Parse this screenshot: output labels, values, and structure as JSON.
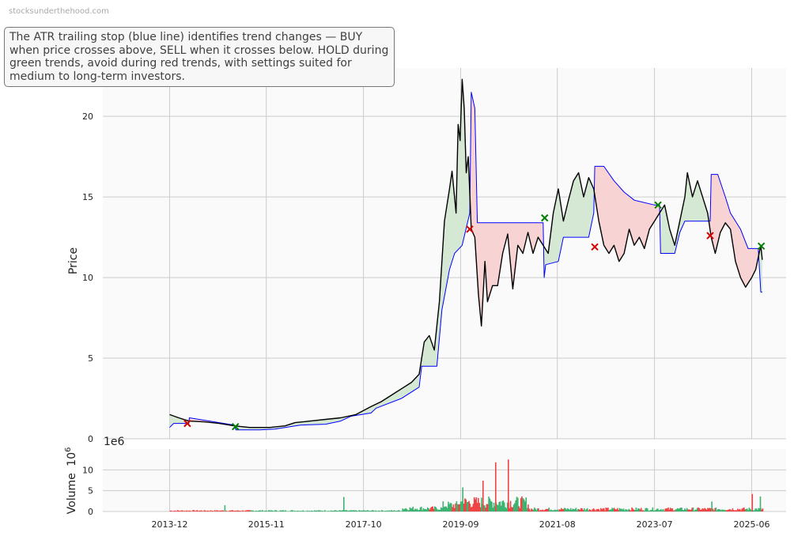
{
  "watermark": "stocksunderthehood.com",
  "note": "The ATR trailing stop (blue line) identifies trend changes — BUY when price crosses above, SELL when it crosses below. HOLD during green trends, avoid during red trends, with settings suited for medium to long-term investors.",
  "colors": {
    "price": "#000000",
    "stop": "#0000ff",
    "bull_fill": "#d5e8d4",
    "bear_fill": "#f8d3d3",
    "buy_marker": "#008000",
    "sell_marker": "#d00000",
    "vol_up": "#3cb371",
    "vol_down": "#ef4444",
    "grid": "#cccccc",
    "panel_bg": "#fafafa"
  },
  "chart_data": {
    "type": "line",
    "price_panel": {
      "ylabel": "Price",
      "ylim": [
        0,
        23
      ],
      "yticks": [
        0,
        5,
        10,
        15,
        20
      ],
      "grid": true
    },
    "volume_panel": {
      "ylabel": "Volume",
      "ylabel_exp": "6",
      "offset_label": "1e6",
      "ylim": [
        0,
        15
      ],
      "yticks": [
        0,
        5,
        10
      ]
    },
    "xlim": [
      2012.6,
      2026.1
    ],
    "xticks": [
      {
        "label": "2013-12",
        "x": 2013.92
      },
      {
        "label": "2015-11",
        "x": 2015.83
      },
      {
        "label": "2017-10",
        "x": 2017.75
      },
      {
        "label": "2019-09",
        "x": 2019.67
      },
      {
        "label": "2021-08",
        "x": 2021.58
      },
      {
        "label": "2023-07",
        "x": 2023.5
      },
      {
        "label": "2025-06",
        "x": 2025.42
      }
    ],
    "price": [
      [
        2013.92,
        1.5
      ],
      [
        2014.1,
        1.3
      ],
      [
        2014.3,
        1.1
      ],
      [
        2014.6,
        1.05
      ],
      [
        2014.9,
        0.95
      ],
      [
        2015.2,
        0.8
      ],
      [
        2015.5,
        0.7
      ],
      [
        2015.9,
        0.7
      ],
      [
        2016.2,
        0.8
      ],
      [
        2016.4,
        1.0
      ],
      [
        2016.7,
        1.1
      ],
      [
        2017.0,
        1.2
      ],
      [
        2017.3,
        1.3
      ],
      [
        2017.6,
        1.5
      ],
      [
        2017.9,
        2.0
      ],
      [
        2018.1,
        2.3
      ],
      [
        2018.4,
        2.9
      ],
      [
        2018.7,
        3.5
      ],
      [
        2018.85,
        4.0
      ],
      [
        2018.95,
        6.0
      ],
      [
        2019.05,
        6.4
      ],
      [
        2019.15,
        5.5
      ],
      [
        2019.25,
        8.5
      ],
      [
        2019.35,
        13.5
      ],
      [
        2019.45,
        15.5
      ],
      [
        2019.5,
        16.6
      ],
      [
        2019.58,
        14.0
      ],
      [
        2019.62,
        19.5
      ],
      [
        2019.66,
        18.5
      ],
      [
        2019.7,
        22.3
      ],
      [
        2019.74,
        20.5
      ],
      [
        2019.78,
        16.5
      ],
      [
        2019.82,
        17.5
      ],
      [
        2019.88,
        13.0
      ],
      [
        2019.95,
        12.5
      ],
      [
        2020.02,
        9.0
      ],
      [
        2020.08,
        7.0
      ],
      [
        2020.15,
        11.0
      ],
      [
        2020.2,
        8.5
      ],
      [
        2020.3,
        9.5
      ],
      [
        2020.4,
        9.5
      ],
      [
        2020.5,
        11.5
      ],
      [
        2020.6,
        12.7
      ],
      [
        2020.7,
        9.3
      ],
      [
        2020.8,
        12.0
      ],
      [
        2020.9,
        11.5
      ],
      [
        2021.0,
        12.8
      ],
      [
        2021.1,
        11.5
      ],
      [
        2021.2,
        12.5
      ],
      [
        2021.3,
        12.0
      ],
      [
        2021.4,
        11.5
      ],
      [
        2021.5,
        14.0
      ],
      [
        2021.6,
        15.5
      ],
      [
        2021.7,
        13.5
      ],
      [
        2021.8,
        14.8
      ],
      [
        2021.9,
        16.0
      ],
      [
        2022.0,
        16.5
      ],
      [
        2022.1,
        15.0
      ],
      [
        2022.2,
        16.2
      ],
      [
        2022.3,
        15.5
      ],
      [
        2022.4,
        13.5
      ],
      [
        2022.5,
        12.0
      ],
      [
        2022.6,
        11.5
      ],
      [
        2022.7,
        12.0
      ],
      [
        2022.8,
        11.0
      ],
      [
        2022.9,
        11.5
      ],
      [
        2023.0,
        13.0
      ],
      [
        2023.1,
        12.0
      ],
      [
        2023.2,
        12.5
      ],
      [
        2023.3,
        11.8
      ],
      [
        2023.4,
        13.0
      ],
      [
        2023.5,
        13.5
      ],
      [
        2023.6,
        14.0
      ],
      [
        2023.7,
        14.5
      ],
      [
        2023.8,
        13.0
      ],
      [
        2023.9,
        12.0
      ],
      [
        2024.0,
        13.5
      ],
      [
        2024.1,
        15.0
      ],
      [
        2024.15,
        16.5
      ],
      [
        2024.25,
        15.0
      ],
      [
        2024.35,
        16.0
      ],
      [
        2024.45,
        15.0
      ],
      [
        2024.55,
        14.0
      ],
      [
        2024.62,
        12.5
      ],
      [
        2024.7,
        11.5
      ],
      [
        2024.8,
        12.8
      ],
      [
        2024.9,
        13.4
      ],
      [
        2025.0,
        13.0
      ],
      [
        2025.1,
        11.0
      ],
      [
        2025.2,
        10.0
      ],
      [
        2025.3,
        9.4
      ],
      [
        2025.42,
        10.0
      ],
      [
        2025.5,
        10.5
      ],
      [
        2025.6,
        12.0
      ],
      [
        2025.63,
        11.1
      ]
    ],
    "stop": [
      [
        2013.92,
        0.7
      ],
      [
        2014.0,
        0.95
      ],
      [
        2014.3,
        0.95
      ],
      [
        2014.31,
        1.3
      ],
      [
        2014.6,
        1.15
      ],
      [
        2014.9,
        1.0
      ],
      [
        2015.2,
        0.85
      ],
      [
        2015.23,
        0.55
      ],
      [
        2015.7,
        0.55
      ],
      [
        2016.0,
        0.6
      ],
      [
        2016.2,
        0.7
      ],
      [
        2016.5,
        0.85
      ],
      [
        2017.0,
        0.9
      ],
      [
        2017.3,
        1.1
      ],
      [
        2017.5,
        1.4
      ],
      [
        2017.9,
        1.6
      ],
      [
        2018.0,
        1.9
      ],
      [
        2018.5,
        2.5
      ],
      [
        2018.85,
        3.2
      ],
      [
        2018.9,
        4.5
      ],
      [
        2019.2,
        4.5
      ],
      [
        2019.3,
        8.0
      ],
      [
        2019.45,
        10.5
      ],
      [
        2019.55,
        11.5
      ],
      [
        2019.7,
        12.0
      ],
      [
        2019.85,
        14.0
      ],
      [
        2019.88,
        21.5
      ],
      [
        2019.95,
        20.5
      ],
      [
        2020.0,
        13.4
      ],
      [
        2020.6,
        13.4
      ],
      [
        2021.3,
        13.4
      ],
      [
        2021.32,
        10.0
      ],
      [
        2021.35,
        10.8
      ],
      [
        2021.6,
        11.0
      ],
      [
        2021.7,
        12.5
      ],
      [
        2022.2,
        12.5
      ],
      [
        2022.3,
        14.0
      ],
      [
        2022.32,
        16.9
      ],
      [
        2022.5,
        16.9
      ],
      [
        2022.7,
        16.0
      ],
      [
        2022.9,
        15.3
      ],
      [
        2023.1,
        14.8
      ],
      [
        2023.5,
        14.5
      ],
      [
        2023.6,
        14.5
      ],
      [
        2023.62,
        11.5
      ],
      [
        2023.9,
        11.5
      ],
      [
        2024.0,
        12.8
      ],
      [
        2024.1,
        13.5
      ],
      [
        2024.6,
        13.5
      ],
      [
        2024.62,
        16.4
      ],
      [
        2024.75,
        16.4
      ],
      [
        2024.9,
        15.0
      ],
      [
        2025.0,
        14.0
      ],
      [
        2025.2,
        13.0
      ],
      [
        2025.35,
        11.8
      ],
      [
        2025.55,
        11.8
      ],
      [
        2025.6,
        9.1
      ],
      [
        2025.63,
        9.1
      ]
    ],
    "signals": [
      {
        "type": "sell",
        "x": 2014.27,
        "y": 0.95
      },
      {
        "type": "buy",
        "x": 2015.22,
        "y": 0.75
      },
      {
        "type": "sell",
        "x": 2019.85,
        "y": 13.0
      },
      {
        "type": "buy",
        "x": 2021.33,
        "y": 13.7
      },
      {
        "type": "sell",
        "x": 2022.32,
        "y": 11.9
      },
      {
        "type": "buy",
        "x": 2023.57,
        "y": 14.5
      },
      {
        "type": "sell",
        "x": 2024.6,
        "y": 12.6
      },
      {
        "type": "buy",
        "x": 2025.61,
        "y": 11.95
      }
    ],
    "volume_spikes": [
      {
        "x": 2015.0,
        "v": 1.5,
        "dir": "up"
      },
      {
        "x": 2017.35,
        "v": 3.5,
        "dir": "up"
      },
      {
        "x": 2019.7,
        "v": 5.8,
        "dir": "up"
      },
      {
        "x": 2020.1,
        "v": 7.4,
        "dir": "down"
      },
      {
        "x": 2020.35,
        "v": 11.8,
        "dir": "down"
      },
      {
        "x": 2020.6,
        "v": 12.5,
        "dir": "down"
      },
      {
        "x": 2024.62,
        "v": 2.4,
        "dir": "up"
      },
      {
        "x": 2025.42,
        "v": 4.2,
        "dir": "down"
      },
      {
        "x": 2025.58,
        "v": 3.6,
        "dir": "up"
      }
    ]
  }
}
